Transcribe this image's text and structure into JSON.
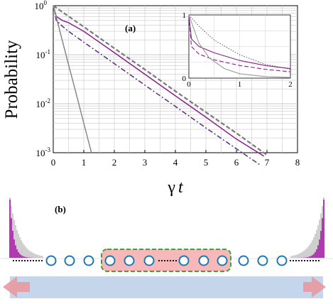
{
  "chart_data": [
    {
      "type": "line",
      "panel_label": "(a)",
      "xlabel_symbol": "γ",
      "xlabel_var": "t",
      "ylabel": "Probability",
      "yscale": "log",
      "xlim": [
        0,
        8
      ],
      "ylim": [
        0.001,
        1
      ],
      "x_ticks": [
        "0",
        "1",
        "2",
        "3",
        "4",
        "5",
        "6",
        "7",
        "8"
      ],
      "y_ticks": [
        {
          "base": "10",
          "exp": "0"
        },
        {
          "base": "10",
          "exp": "-1"
        },
        {
          "base": "10",
          "exp": "-2"
        },
        {
          "base": "10",
          "exp": "-3"
        }
      ],
      "grid": true,
      "series": [
        {
          "style": "dashed",
          "color": "#7a7a7a",
          "x": [
            0,
            1,
            2,
            3,
            4,
            5,
            6,
            7
          ],
          "y": [
            1.0,
            0.37,
            0.135,
            0.05,
            0.018,
            0.0067,
            0.0025,
            0.0009
          ]
        },
        {
          "style": "solid",
          "color": "#8a1f8a",
          "x": [
            0,
            0.1,
            0.3,
            0.5,
            1,
            2,
            3,
            4,
            5,
            6,
            6.9
          ],
          "y": [
            1.0,
            0.6,
            0.5,
            0.45,
            0.3,
            0.11,
            0.04,
            0.0145,
            0.0053,
            0.0019,
            0.00085
          ]
        },
        {
          "style": "dashdot",
          "color": "#5a2a82",
          "x": [
            0,
            0.1,
            0.3,
            0.5,
            1,
            2,
            3,
            4,
            5,
            6,
            6.8
          ],
          "y": [
            1.0,
            0.5,
            0.38,
            0.3,
            0.18,
            0.066,
            0.024,
            0.0088,
            0.0032,
            0.0012,
            0.00055
          ]
        },
        {
          "style": "solid",
          "color": "#888888",
          "x": [
            0,
            0.25,
            0.5,
            0.75,
            1.0,
            1.25
          ],
          "y": [
            1.0,
            0.25,
            0.063,
            0.016,
            0.004,
            0.001
          ]
        }
      ],
      "inset": {
        "xlim": [
          0,
          2
        ],
        "ylim": [
          0,
          1
        ],
        "x_ticks": [
          "0",
          "1",
          "2"
        ],
        "y_ticks": [
          "0",
          "1"
        ],
        "series": [
          {
            "style": "dotted",
            "color": "#666666",
            "x": [
              0,
              0.2,
              0.5,
              1,
              1.5,
              2
            ],
            "y": [
              1.0,
              0.82,
              0.6,
              0.37,
              0.22,
              0.14
            ]
          },
          {
            "style": "solid",
            "color": "#8a1f8a",
            "x": [
              0,
              0.05,
              0.2,
              0.5,
              1,
              1.5,
              2
            ],
            "y": [
              1.0,
              0.62,
              0.5,
              0.4,
              0.28,
              0.2,
              0.15
            ]
          },
          {
            "style": "dashed",
            "color": "#8a1f8a",
            "x": [
              0,
              0.05,
              0.2,
              0.5,
              1,
              1.5,
              2
            ],
            "y": [
              1.0,
              0.5,
              0.38,
              0.29,
              0.2,
              0.14,
              0.1
            ]
          },
          {
            "style": "solid",
            "color": "#9a9a9a",
            "x": [
              0,
              0.2,
              0.4,
              0.7,
              1,
              1.5,
              2
            ],
            "y": [
              1.0,
              0.55,
              0.32,
              0.15,
              0.07,
              0.025,
              0.01
            ]
          }
        ]
      }
    },
    {
      "type": "diagram",
      "panel_label": "(b)",
      "chain_left_sites": 3,
      "chain_right_sites": 3,
      "box_sites_left": 3,
      "box_sites_right": 3,
      "site_color": "#1f78b4",
      "box_fill": "#f6b8b8",
      "box_border": "#3aa63a",
      "band_color": "#c5d6ec",
      "arrow_color": "#e89aa0",
      "histogram_colors": [
        "#b03ab0",
        "#cfcfcf"
      ]
    }
  ]
}
